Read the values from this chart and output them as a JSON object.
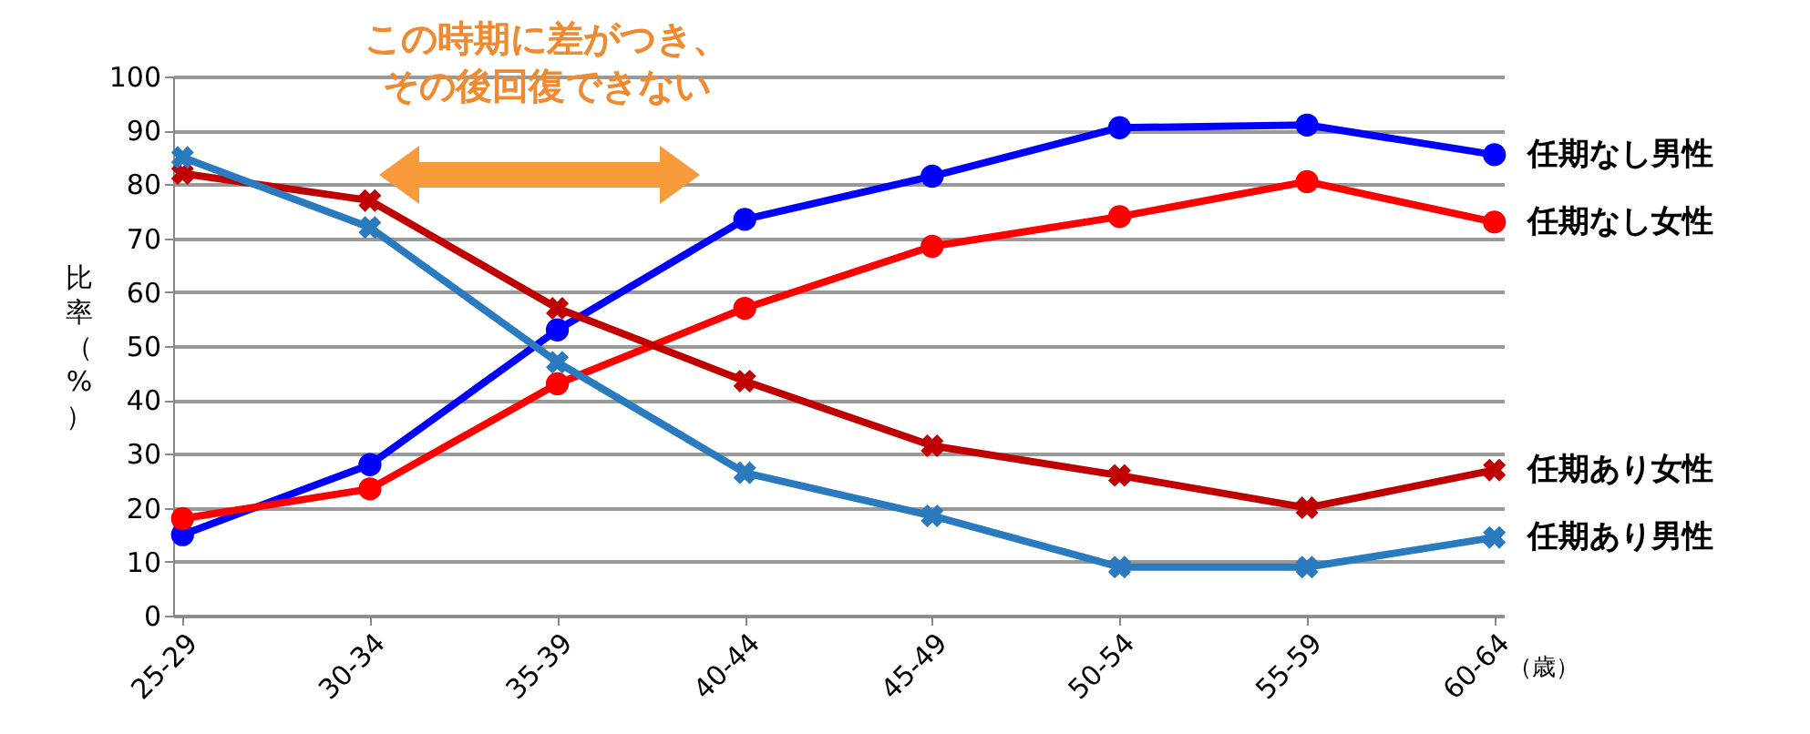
{
  "chart_data": {
    "type": "line",
    "categories": [
      "25-29",
      "30-34",
      "35-39",
      "40-44",
      "45-49",
      "50-54",
      "55-59",
      "60-64"
    ],
    "series": [
      {
        "name": "任期なし男性",
        "color": "#0000ff",
        "marker": "circle",
        "values": [
          15,
          28,
          53,
          73.5,
          81.5,
          90.5,
          91,
          85.5
        ]
      },
      {
        "name": "任期なし女性",
        "color": "#ff0000",
        "marker": "circle",
        "values": [
          18,
          23.5,
          43,
          57,
          68.5,
          74,
          80.5,
          73
        ]
      },
      {
        "name": "任期あり女性",
        "color": "#c00000",
        "marker": "cross",
        "values": [
          82,
          77,
          57,
          43.5,
          31.5,
          26,
          20,
          27
        ]
      },
      {
        "name": "任期あり男性",
        "color": "#2a7ac0",
        "marker": "cross",
        "values": [
          85,
          72,
          47,
          26.5,
          18.5,
          9,
          9,
          14.5
        ]
      }
    ],
    "xlabel": "（歳）",
    "ylabel": "比率（%）",
    "ylim": [
      0,
      100
    ],
    "yticks": [
      0,
      10,
      20,
      30,
      40,
      50,
      60,
      70,
      80,
      90,
      100
    ],
    "grid": "y",
    "legend": false,
    "annotations": [
      "この時期に差がつき、",
      "その後回復できない"
    ]
  }
}
